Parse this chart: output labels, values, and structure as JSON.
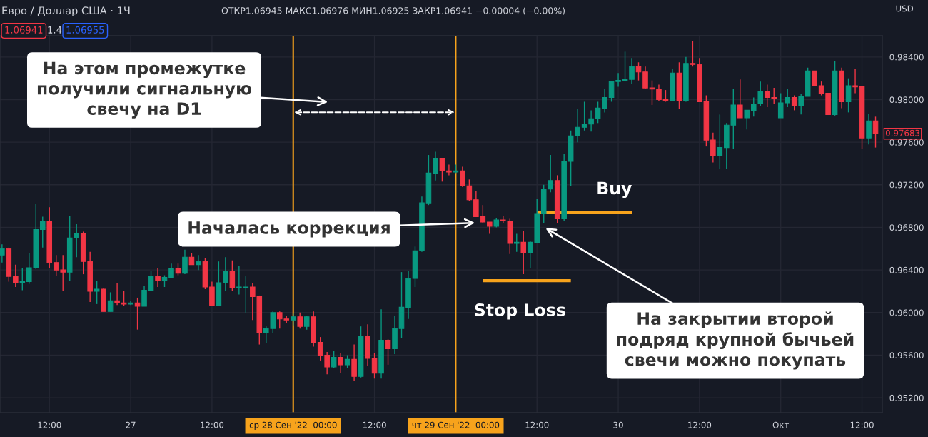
{
  "chart_data": {
    "type": "candlestick",
    "title": "Евро / Доллар США · 1Ч",
    "subtitle": "ОТКР1.06945 МАКС1.06976 МИН1.06925 ЗАКР1.06941 −0.00004 (−0.00%)",
    "ylabel": "USD",
    "annotations": [
      "1.06941",
      "1.4",
      "1.06955",
      "На этом промежутке получили сигнальную свечу на D1",
      "Началась коррекция",
      "На закрытии второй подряд крупной бычьей свечи можно покупать",
      "0.97683"
    ],
    "categories": [
      null,
      null,
      null,
      null,
      null,
      null,
      null,
      "12:00",
      null,
      null,
      null,
      null,
      null,
      null,
      null,
      null,
      null,
      null,
      null,
      "27",
      null,
      null,
      null,
      null,
      null,
      null,
      null,
      null,
      null,
      null,
      null,
      "12:00",
      null,
      null,
      null,
      null,
      null,
      null,
      null,
      null,
      null,
      null,
      null,
      "ср 28 Сен '22  00:00",
      null,
      null,
      null,
      null,
      null,
      null,
      null,
      null,
      null,
      null,
      null,
      "12:00",
      null,
      null,
      null,
      null,
      null,
      null,
      null,
      null,
      null,
      null,
      null,
      "чт 29 Сен '22  00:00",
      null,
      null,
      null,
      null,
      null,
      null,
      null,
      null,
      null,
      null,
      null,
      "12:00",
      null,
      null,
      null,
      null,
      null,
      null,
      null,
      null,
      null,
      null,
      null,
      "30",
      null,
      null,
      null,
      null,
      null,
      null,
      null,
      null,
      null,
      null,
      null,
      "12:00",
      null,
      null,
      null,
      null,
      null,
      null,
      null,
      null,
      null,
      null,
      null,
      "Окт",
      null,
      null,
      null,
      null,
      null,
      null,
      null,
      null,
      null,
      null,
      null,
      "12:00",
      null,
      null
    ],
    "series": [
      {
        "type": "candlestick",
        "ohlc": [
          [
            0.9654,
            0.9664,
            0.9647,
            0.966
          ],
          [
            0.966,
            0.9661,
            0.9629,
            0.9634
          ],
          [
            0.9634,
            0.9645,
            0.9624,
            0.9628
          ],
          [
            0.9628,
            0.9642,
            0.9621,
            0.9629
          ],
          [
            0.9629,
            0.9656,
            0.9627,
            0.9642
          ],
          [
            0.9642,
            0.9702,
            0.9641,
            0.9678
          ],
          [
            0.9678,
            0.969,
            0.9661,
            0.9686
          ],
          [
            0.9686,
            0.9699,
            0.9642,
            0.9647
          ],
          [
            0.9647,
            0.9654,
            0.9634,
            0.964
          ],
          [
            0.964,
            0.9654,
            0.962,
            0.9638
          ],
          [
            0.9638,
            0.9691,
            0.963,
            0.967
          ],
          [
            0.967,
            0.9683,
            0.9652,
            0.9674
          ],
          [
            0.9674,
            0.9676,
            0.9636,
            0.9648
          ],
          [
            0.9648,
            0.9657,
            0.961,
            0.962
          ],
          [
            0.962,
            0.963,
            0.9608,
            0.9622
          ],
          [
            0.9622,
            0.9623,
            0.9601,
            0.9601
          ],
          [
            0.9601,
            0.9619,
            0.9601,
            0.9611
          ],
          [
            0.9611,
            0.9628,
            0.9607,
            0.9609
          ],
          [
            0.9609,
            0.962,
            0.9606,
            0.9608
          ],
          [
            0.9608,
            0.9611,
            0.9607,
            0.9609
          ],
          [
            0.9609,
            0.9614,
            0.9584,
            0.9606
          ],
          [
            0.9606,
            0.9625,
            0.9606,
            0.9621
          ],
          [
            0.9621,
            0.9639,
            0.962,
            0.9634
          ],
          [
            0.9634,
            0.9642,
            0.9624,
            0.963
          ],
          [
            0.963,
            0.9635,
            0.9624,
            0.9633
          ],
          [
            0.9633,
            0.9646,
            0.9632,
            0.9641
          ],
          [
            0.9641,
            0.9646,
            0.9635,
            0.9637
          ],
          [
            0.9637,
            0.9659,
            0.9636,
            0.9652
          ],
          [
            0.9652,
            0.9656,
            0.9645,
            0.9645
          ],
          [
            0.9645,
            0.9654,
            0.964,
            0.9648
          ],
          [
            0.9648,
            0.9651,
            0.9622,
            0.9624
          ],
          [
            0.9624,
            0.9629,
            0.9607,
            0.9607
          ],
          [
            0.9607,
            0.9648,
            0.9607,
            0.9628
          ],
          [
            0.9628,
            0.9652,
            0.962,
            0.9639
          ],
          [
            0.9639,
            0.9649,
            0.962,
            0.9623
          ],
          [
            0.9623,
            0.9644,
            0.9617,
            0.9624
          ],
          [
            0.9623,
            0.9634,
            0.96,
            0.9624
          ],
          [
            0.9624,
            0.9628,
            0.9593,
            0.9615
          ],
          [
            0.9615,
            0.9616,
            0.957,
            0.9581
          ],
          [
            0.9581,
            0.9587,
            0.9571,
            0.9585
          ],
          [
            0.9585,
            0.9601,
            0.9581,
            0.96
          ],
          [
            0.96,
            0.9601,
            0.9585,
            0.9594
          ],
          [
            0.9594,
            0.9597,
            0.959,
            0.9593
          ],
          [
            0.9593,
            0.9599,
            0.9588,
            0.9596
          ],
          [
            0.9596,
            0.96,
            0.9585,
            0.9587
          ],
          [
            0.9587,
            0.9597,
            0.9584,
            0.9596
          ],
          [
            0.9596,
            0.9601,
            0.9568,
            0.9572
          ],
          [
            0.9572,
            0.9577,
            0.9555,
            0.956
          ],
          [
            0.956,
            0.9563,
            0.9542,
            0.9549
          ],
          [
            0.9549,
            0.9564,
            0.9548,
            0.9558
          ],
          [
            0.9558,
            0.9562,
            0.9543,
            0.9551
          ],
          [
            0.9551,
            0.956,
            0.9548,
            0.9556
          ],
          [
            0.9556,
            0.957,
            0.9536,
            0.954
          ],
          [
            0.954,
            0.9587,
            0.9539,
            0.9578
          ],
          [
            0.9578,
            0.9589,
            0.955,
            0.9557
          ],
          [
            0.9557,
            0.9562,
            0.9538,
            0.9543
          ],
          [
            0.9543,
            0.9603,
            0.9538,
            0.9574
          ],
          [
            0.9574,
            0.9575,
            0.9551,
            0.9566
          ],
          [
            0.9566,
            0.9597,
            0.9561,
            0.9585
          ],
          [
            0.9585,
            0.9638,
            0.9576,
            0.9605
          ],
          [
            0.9605,
            0.9639,
            0.9594,
            0.9632
          ],
          [
            0.9632,
            0.9662,
            0.9624,
            0.9658
          ],
          [
            0.9658,
            0.9709,
            0.9657,
            0.9703
          ],
          [
            0.9703,
            0.9748,
            0.9701,
            0.9731
          ],
          [
            0.9731,
            0.9751,
            0.9724,
            0.9745
          ],
          [
            0.9745,
            0.9745,
            0.9723,
            0.9733
          ],
          [
            0.9733,
            0.9739,
            0.9729,
            0.9732
          ],
          [
            0.9732,
            0.9739,
            0.9731,
            0.9733
          ],
          [
            0.9733,
            0.9737,
            0.9718,
            0.9719
          ],
          [
            0.9719,
            0.9725,
            0.9705,
            0.9706
          ],
          [
            0.9706,
            0.9714,
            0.969,
            0.969
          ],
          [
            0.969,
            0.9701,
            0.9684,
            0.9685
          ],
          [
            0.9685,
            0.9685,
            0.9674,
            0.9681
          ],
          [
            0.9681,
            0.9689,
            0.968,
            0.9687
          ],
          [
            0.9687,
            0.9691,
            0.9684,
            0.9686
          ],
          [
            0.9686,
            0.9688,
            0.9655,
            0.9665
          ],
          [
            0.9665,
            0.9674,
            0.9657,
            0.9666
          ],
          [
            0.9666,
            0.9677,
            0.9636,
            0.9656
          ],
          [
            0.9656,
            0.9667,
            0.9642,
            0.9666
          ],
          [
            0.9666,
            0.9707,
            0.9665,
            0.9693
          ],
          [
            0.9693,
            0.972,
            0.9684,
            0.9716
          ],
          [
            0.9716,
            0.9748,
            0.9713,
            0.9724
          ],
          [
            0.9724,
            0.9729,
            0.9684,
            0.9688
          ],
          [
            0.9688,
            0.9749,
            0.9686,
            0.9742
          ],
          [
            0.9742,
            0.9771,
            0.9719,
            0.9766
          ],
          [
            0.9766,
            0.9791,
            0.976,
            0.9774
          ],
          [
            0.9774,
            0.9798,
            0.9771,
            0.9777
          ],
          [
            0.9777,
            0.979,
            0.977,
            0.9782
          ],
          [
            0.9782,
            0.9798,
            0.9778,
            0.9792
          ],
          [
            0.9792,
            0.981,
            0.9788,
            0.9802
          ],
          [
            0.9802,
            0.9817,
            0.9798,
            0.9817
          ],
          [
            0.9817,
            0.9825,
            0.9812,
            0.9818
          ],
          [
            0.9818,
            0.9845,
            0.9817,
            0.9819
          ],
          [
            0.9819,
            0.9839,
            0.9815,
            0.9831
          ],
          [
            0.9831,
            0.9835,
            0.9818,
            0.9826
          ],
          [
            0.9826,
            0.9831,
            0.981,
            0.9811
          ],
          [
            0.9811,
            0.9818,
            0.9795,
            0.981
          ],
          [
            0.981,
            0.9814,
            0.9799,
            0.98
          ],
          [
            0.98,
            0.9809,
            0.9798,
            0.9799
          ],
          [
            0.9799,
            0.9829,
            0.9799,
            0.9825
          ],
          [
            0.9825,
            0.9835,
            0.9791,
            0.9799
          ],
          [
            0.9799,
            0.984,
            0.9798,
            0.9834
          ],
          [
            0.9834,
            0.9855,
            0.9831,
            0.9833
          ],
          [
            0.9833,
            0.9839,
            0.9798,
            0.9798
          ],
          [
            0.9798,
            0.9804,
            0.9756,
            0.9762
          ],
          [
            0.9762,
            0.9769,
            0.9741,
            0.9747
          ],
          [
            0.9747,
            0.9786,
            0.9735,
            0.9755
          ],
          [
            0.9755,
            0.9778,
            0.9735,
            0.9776
          ],
          [
            0.9776,
            0.981,
            0.9754,
            0.9795
          ],
          [
            0.9795,
            0.9819,
            0.9783,
            0.9783
          ],
          [
            0.9783,
            0.979,
            0.9772,
            0.979
          ],
          [
            0.979,
            0.9802,
            0.9784,
            0.9796
          ],
          [
            0.9796,
            0.9817,
            0.9794,
            0.9808
          ],
          [
            0.9808,
            0.9814,
            0.9793,
            0.9802
          ],
          [
            0.9802,
            0.9811,
            0.9796,
            0.9801
          ],
          [
            0.9783,
            0.9806,
            0.9783,
            0.9797
          ],
          [
            0.9797,
            0.981,
            0.9793,
            0.9802
          ],
          [
            0.9802,
            0.9804,
            0.979,
            0.9794
          ],
          [
            0.9794,
            0.9805,
            0.9786,
            0.9803
          ],
          [
            0.9803,
            0.983,
            0.9803,
            0.9827
          ],
          [
            0.9827,
            0.9827,
            0.9813,
            0.9813
          ],
          [
            0.9813,
            0.9817,
            0.9804,
            0.9806
          ],
          [
            0.9806,
            0.9806,
            0.9786,
            0.9786
          ],
          [
            0.9786,
            0.9836,
            0.9785,
            0.9827
          ],
          [
            0.9827,
            0.983,
            0.9792,
            0.9798
          ],
          [
            0.9798,
            0.982,
            0.9788,
            0.9813
          ],
          [
            0.9813,
            0.9829,
            0.9806,
            0.9812
          ],
          [
            0.9812,
            0.9813,
            0.9754,
            0.9764
          ],
          [
            0.9764,
            0.9787,
            0.9758,
            0.978
          ],
          [
            0.978,
            0.9784,
            0.9755,
            0.9768
          ]
        ],
        "colors": [
          "#089981",
          "#f23645",
          "#f23645",
          "#089981",
          "#089981",
          "#089981",
          "#089981",
          "#f23645",
          "#f23645",
          "#f23645",
          "#089981",
          "#089981",
          "#f23645",
          "#f23645",
          "#089981",
          "#f23645",
          "#089981",
          "#f23645",
          "#f23645",
          "#089981",
          "#f23645",
          "#089981",
          "#089981",
          "#f23645",
          "#089981",
          "#089981",
          "#f23645",
          "#089981",
          "#f23645",
          "#089981",
          "#f23645",
          "#f23645",
          "#089981",
          "#089981",
          "#f23645",
          "#089981",
          "#089981",
          "#f23645",
          "#f23645",
          "#089981",
          "#089981",
          "#f23645",
          "#f23645",
          "#089981",
          "#f23645",
          "#089981",
          "#f23645",
          "#f23645",
          "#f23645",
          "#089981",
          "#f23645",
          "#089981",
          "#f23645",
          "#089981",
          "#f23645",
          "#f23645",
          "#089981",
          "#f23645",
          "#089981",
          "#089981",
          "#089981",
          "#089981",
          "#089981",
          "#089981",
          "#089981",
          "#f23645",
          "#f23645",
          "#089981",
          "#f23645",
          "#f23645",
          "#f23645",
          "#f23645",
          "#f23645",
          "#089981",
          "#f23645",
          "#f23645",
          "#089981",
          "#f23645",
          "#089981",
          "#089981",
          "#089981",
          "#089981",
          "#f23645",
          "#089981",
          "#089981",
          "#089981",
          "#089981",
          "#089981",
          "#089981",
          "#089981",
          "#089981",
          "#089981",
          "#089981",
          "#089981",
          "#f23645",
          "#f23645",
          "#f23645",
          "#f23645",
          "#f23645",
          "#089981",
          "#f23645",
          "#089981",
          "#f23645",
          "#f23645",
          "#f23645",
          "#f23645",
          "#089981",
          "#089981",
          "#089981",
          "#f23645",
          "#089981",
          "#089981",
          "#089981",
          "#f23645",
          "#f23645",
          "#089981",
          "#089981",
          "#f23645",
          "#089981",
          "#089981",
          "#f23645",
          "#f23645",
          "#f23645",
          "#089981",
          "#f23645",
          "#089981",
          "#f23645",
          "#f23645",
          "#089981",
          "#f23645"
        ]
      },
      {
        "type": "line",
        "name": "Buy",
        "color": "#f7a31c",
        "values": [
          null,
          null,
          null,
          null,
          null,
          null,
          null,
          null,
          null,
          null,
          null,
          null,
          null,
          null,
          null,
          null,
          null,
          null,
          null,
          null,
          null,
          null,
          null,
          null,
          null,
          null,
          null,
          null,
          null,
          null,
          null,
          null,
          null,
          null,
          null,
          null,
          null,
          null,
          null,
          null,
          null,
          null,
          null,
          null,
          null,
          null,
          null,
          null,
          null,
          null,
          null,
          null,
          null,
          null,
          null,
          null,
          null,
          null,
          null,
          null,
          null,
          null,
          null,
          null,
          null,
          null,
          null,
          null,
          null,
          null,
          null,
          null,
          null,
          null,
          null,
          null,
          null,
          null,
          null,
          0.9694,
          0.9694,
          0.9694,
          0.9694,
          0.9694,
          0.9694,
          0.9694,
          0.9694,
          0.9694,
          0.9694,
          0.9694,
          0.9694,
          0.9694,
          0.9694,
          0.9694,
          null,
          null,
          null,
          null,
          null,
          null,
          null,
          null,
          null,
          null,
          null,
          null,
          null,
          null,
          null,
          null,
          null,
          null,
          null,
          null,
          null,
          null,
          null,
          null,
          null,
          null,
          null,
          null,
          null,
          null,
          null,
          null,
          null,
          null,
          null,
          null
        ]
      },
      {
        "type": "line",
        "name": "Stop Loss",
        "color": "#f7a31c",
        "values": [
          null,
          null,
          null,
          null,
          null,
          null,
          null,
          null,
          null,
          null,
          null,
          null,
          null,
          null,
          null,
          null,
          null,
          null,
          null,
          null,
          null,
          null,
          null,
          null,
          null,
          null,
          null,
          null,
          null,
          null,
          null,
          null,
          null,
          null,
          null,
          null,
          null,
          null,
          null,
          null,
          null,
          null,
          null,
          null,
          null,
          null,
          null,
          null,
          null,
          null,
          null,
          null,
          null,
          null,
          null,
          null,
          null,
          null,
          null,
          null,
          null,
          null,
          null,
          null,
          null,
          null,
          null,
          null,
          null,
          null,
          null,
          0.963,
          0.963,
          0.963,
          0.963,
          0.963,
          0.963,
          0.963,
          0.963,
          0.963,
          0.963,
          0.963,
          0.963,
          0.963,
          0.963,
          null,
          null,
          null,
          null,
          null,
          null,
          null,
          null,
          null,
          null,
          null,
          null,
          null,
          null,
          null,
          null,
          null,
          null,
          null,
          null,
          null,
          null,
          null,
          null,
          null,
          null,
          null,
          null,
          null,
          null,
          null,
          null,
          null,
          null,
          null,
          null,
          null,
          null,
          null,
          null,
          null,
          null,
          null,
          null,
          null
        ]
      }
    ],
    "ylim": [
      0.9506,
      0.986
    ],
    "yticks": [
      {
        "value": 0.952,
        "label": "0.95200"
      },
      {
        "value": 0.956,
        "label": "0.95600"
      },
      {
        "value": 0.96,
        "label": "0.96000"
      },
      {
        "value": 0.964,
        "label": "0.96400"
      },
      {
        "value": 0.968,
        "label": "0.96800"
      },
      {
        "value": 0.972,
        "label": "0.97200"
      },
      {
        "value": 0.976,
        "label": "0.97600"
      },
      {
        "value": 0.98,
        "label": "0.98000"
      },
      {
        "value": 0.984,
        "label": "0.98400"
      }
    ],
    "grid": true,
    "ref_lines": [
      {
        "axis": "x",
        "value": "ср 28 Сен '22  00:00",
        "color": "#f7a31c"
      },
      {
        "axis": "x",
        "value": "чт 29 Сен '22  00:00",
        "color": "#f7a31c"
      }
    ]
  }
}
